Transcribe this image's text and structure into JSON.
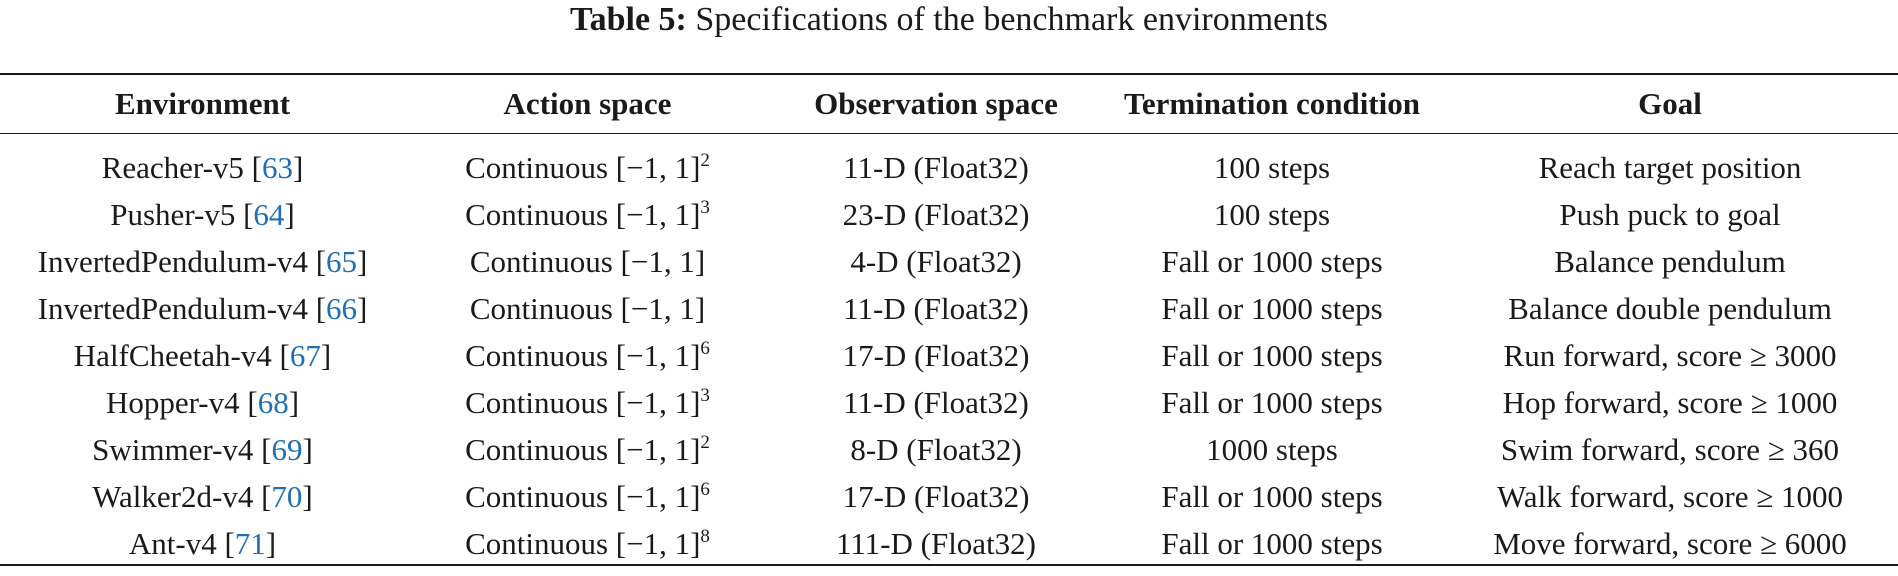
{
  "caption": {
    "label": "Table 5:",
    "text": "Specifications of the benchmark environments"
  },
  "headers": [
    "Environment",
    "Action space",
    "Observation space",
    "Termination condition",
    "Goal"
  ],
  "rows": [
    {
      "env": "Reacher-v5",
      "cite": "63",
      "action": "Continuous [−1, 1]",
      "action_sup": "2",
      "obs": "11-D (Float32)",
      "term": "100 steps",
      "goal": "Reach target position"
    },
    {
      "env": "Pusher-v5",
      "cite": "64",
      "action": "Continuous [−1, 1]",
      "action_sup": "3",
      "obs": "23-D (Float32)",
      "term": "100 steps",
      "goal": "Push puck to goal"
    },
    {
      "env": "InvertedPendulum-v4",
      "cite": "65",
      "action": "Continuous [−1, 1]",
      "action_sup": "",
      "obs": "4-D (Float32)",
      "term": "Fall or 1000 steps",
      "goal": "Balance pendulum"
    },
    {
      "env": "InvertedPendulum-v4",
      "cite": "66",
      "action": "Continuous [−1, 1]",
      "action_sup": "",
      "obs": "11-D (Float32)",
      "term": "Fall or 1000 steps",
      "goal": "Balance double pendulum"
    },
    {
      "env": "HalfCheetah-v4",
      "cite": "67",
      "action": "Continuous [−1, 1]",
      "action_sup": "6",
      "obs": "17-D (Float32)",
      "term": "Fall or 1000 steps",
      "goal": "Run forward, score ≥ 3000"
    },
    {
      "env": "Hopper-v4",
      "cite": "68",
      "action": "Continuous [−1, 1]",
      "action_sup": "3",
      "obs": "11-D (Float32)",
      "term": "Fall or 1000 steps",
      "goal": "Hop forward, score ≥ 1000"
    },
    {
      "env": "Swimmer-v4",
      "cite": "69",
      "action": "Continuous [−1, 1]",
      "action_sup": "2",
      "obs": "8-D (Float32)",
      "term": "1000 steps",
      "goal": "Swim forward, score ≥ 360"
    },
    {
      "env": "Walker2d-v4",
      "cite": "70",
      "action": "Continuous [−1, 1]",
      "action_sup": "6",
      "obs": "17-D (Float32)",
      "term": "Fall or 1000 steps",
      "goal": "Walk forward, score ≥ 1000"
    },
    {
      "env": "Ant-v4",
      "cite": "71",
      "action": "Continuous [−1, 1]",
      "action_sup": "8",
      "obs": "111-D (Float32)",
      "term": "Fall or 1000 steps",
      "goal": "Move forward, score ≥ 6000"
    }
  ]
}
